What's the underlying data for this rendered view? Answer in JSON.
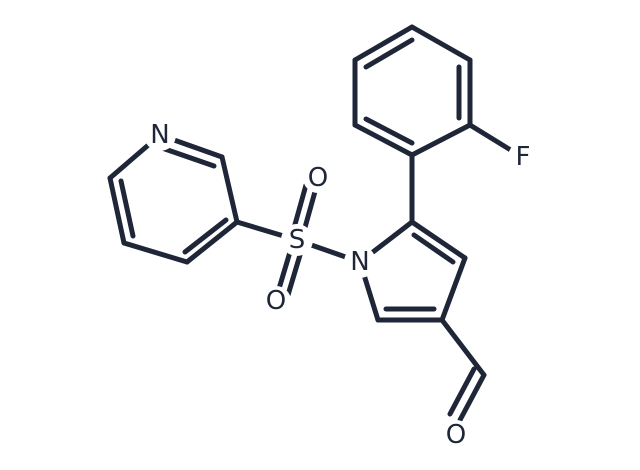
{
  "atoms": [
    {
      "label": "N"
    },
    {
      "label": "S"
    },
    {
      "label": "O"
    },
    {
      "label": "O"
    },
    {
      "label": "N"
    },
    {
      "label": "F"
    },
    {
      "label": "O"
    }
  ]
}
